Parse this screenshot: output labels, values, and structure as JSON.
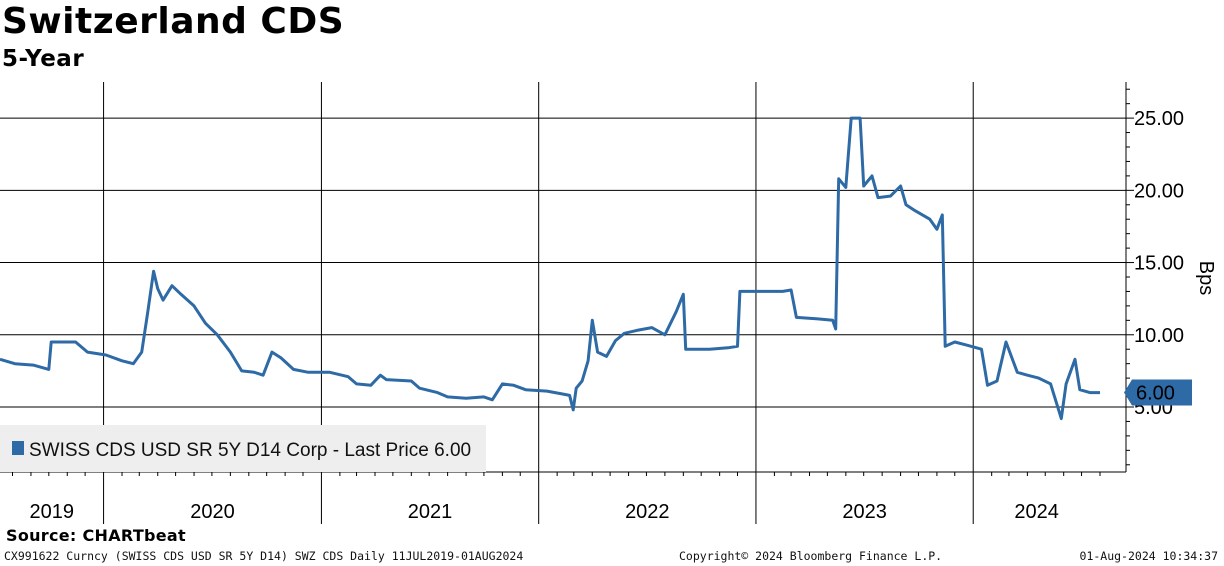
{
  "header": {
    "title": "Switzerland CDS",
    "subtitle": "5-Year"
  },
  "source_text": "Source: CHARTbeat",
  "footer": {
    "left": "CX991622 Curncy (SWISS CDS USD SR 5Y D14) SWZ CDS  Daily 11JUL2019-01AUG2024",
    "middle": "Copyright© 2024 Bloomberg Finance L.P.",
    "right": "01-Aug-2024 10:34:37"
  },
  "legend": {
    "text": "SWISS CDS USD SR 5Y D14 Corp - Last Price 6.00"
  },
  "colors": {
    "series": "#2e6aa5",
    "legend_bg": "#eeeeee",
    "grid": "#000000"
  },
  "chart_data": {
    "type": "line",
    "ylabel": "Bps",
    "ylim": [
      0.5,
      27.5
    ],
    "y_ticks": [
      "5.00",
      "10.00",
      "15.00",
      "20.00",
      "25.00"
    ],
    "x_range": [
      "2019-07-11",
      "2024-08-01"
    ],
    "year_labels": [
      "2019",
      "2020",
      "2021",
      "2022",
      "2023",
      "2024"
    ],
    "grid": true,
    "legend_position": "bottom-left",
    "last_value_label": "6.00",
    "series": [
      {
        "name": "SWISS CDS USD SR 5Y D14 Corp",
        "points": [
          [
            "2019-07-11",
            8.3
          ],
          [
            "2019-08-05",
            8.0
          ],
          [
            "2019-09-05",
            7.9
          ],
          [
            "2019-10-01",
            7.6
          ],
          [
            "2019-10-05",
            9.5
          ],
          [
            "2019-11-15",
            9.5
          ],
          [
            "2019-12-05",
            8.8
          ],
          [
            "2020-01-05",
            8.6
          ],
          [
            "2020-02-01",
            8.2
          ],
          [
            "2020-02-20",
            8.0
          ],
          [
            "2020-03-05",
            8.8
          ],
          [
            "2020-03-15",
            11.5
          ],
          [
            "2020-03-25",
            14.4
          ],
          [
            "2020-04-01",
            13.2
          ],
          [
            "2020-04-10",
            12.4
          ],
          [
            "2020-04-25",
            13.4
          ],
          [
            "2020-05-10",
            12.8
          ],
          [
            "2020-06-01",
            12.0
          ],
          [
            "2020-06-20",
            10.8
          ],
          [
            "2020-07-10",
            10.0
          ],
          [
            "2020-08-01",
            8.8
          ],
          [
            "2020-08-20",
            7.5
          ],
          [
            "2020-09-10",
            7.4
          ],
          [
            "2020-09-25",
            7.2
          ],
          [
            "2020-10-10",
            8.8
          ],
          [
            "2020-10-25",
            8.4
          ],
          [
            "2020-11-15",
            7.6
          ],
          [
            "2020-12-10",
            7.4
          ],
          [
            "2021-01-15",
            7.4
          ],
          [
            "2021-02-15",
            7.1
          ],
          [
            "2021-03-01",
            6.6
          ],
          [
            "2021-03-25",
            6.5
          ],
          [
            "2021-04-10",
            7.2
          ],
          [
            "2021-04-20",
            6.9
          ],
          [
            "2021-06-01",
            6.8
          ],
          [
            "2021-06-15",
            6.3
          ],
          [
            "2021-07-15",
            6.0
          ],
          [
            "2021-08-01",
            5.7
          ],
          [
            "2021-09-01",
            5.6
          ],
          [
            "2021-10-01",
            5.7
          ],
          [
            "2021-10-15",
            5.5
          ],
          [
            "2021-11-01",
            6.6
          ],
          [
            "2021-11-20",
            6.5
          ],
          [
            "2021-12-10",
            6.2
          ],
          [
            "2022-01-15",
            6.1
          ],
          [
            "2022-02-10",
            5.9
          ],
          [
            "2022-02-22",
            5.8
          ],
          [
            "2022-02-28",
            4.8
          ],
          [
            "2022-03-05",
            6.3
          ],
          [
            "2022-03-15",
            6.8
          ],
          [
            "2022-03-25",
            8.2
          ],
          [
            "2022-04-01",
            11.0
          ],
          [
            "2022-04-10",
            8.8
          ],
          [
            "2022-04-25",
            8.5
          ],
          [
            "2022-05-10",
            9.6
          ],
          [
            "2022-05-25",
            10.1
          ],
          [
            "2022-06-15",
            10.3
          ],
          [
            "2022-07-10",
            10.5
          ],
          [
            "2022-08-01",
            10.0
          ],
          [
            "2022-08-20",
            11.6
          ],
          [
            "2022-09-01",
            12.8
          ],
          [
            "2022-09-05",
            9.0
          ],
          [
            "2022-10-15",
            9.0
          ],
          [
            "2022-11-15",
            9.1
          ],
          [
            "2022-12-01",
            9.2
          ],
          [
            "2022-12-05",
            13.0
          ],
          [
            "2023-01-15",
            13.0
          ],
          [
            "2023-02-15",
            13.0
          ],
          [
            "2023-03-01",
            13.1
          ],
          [
            "2023-03-10",
            11.2
          ],
          [
            "2023-04-15",
            11.1
          ],
          [
            "2023-05-10",
            11.0
          ],
          [
            "2023-05-15",
            10.4
          ],
          [
            "2023-05-20",
            20.8
          ],
          [
            "2023-06-01",
            20.2
          ],
          [
            "2023-06-10",
            25.0
          ],
          [
            "2023-06-25",
            25.0
          ],
          [
            "2023-07-01",
            20.3
          ],
          [
            "2023-07-15",
            21.0
          ],
          [
            "2023-07-25",
            19.5
          ],
          [
            "2023-08-15",
            19.6
          ],
          [
            "2023-09-01",
            20.3
          ],
          [
            "2023-09-10",
            19.0
          ],
          [
            "2023-09-25",
            18.6
          ],
          [
            "2023-10-20",
            18.0
          ],
          [
            "2023-11-01",
            17.3
          ],
          [
            "2023-11-10",
            18.3
          ],
          [
            "2023-11-15",
            9.2
          ],
          [
            "2023-12-01",
            9.5
          ],
          [
            "2023-12-20",
            9.3
          ],
          [
            "2024-01-15",
            9.0
          ],
          [
            "2024-01-25",
            6.5
          ],
          [
            "2024-02-10",
            6.8
          ],
          [
            "2024-02-25",
            9.5
          ],
          [
            "2024-03-15",
            7.4
          ],
          [
            "2024-04-01",
            7.2
          ],
          [
            "2024-04-20",
            7.0
          ],
          [
            "2024-05-10",
            6.6
          ],
          [
            "2024-05-28",
            4.2
          ],
          [
            "2024-06-05",
            6.6
          ],
          [
            "2024-06-20",
            8.3
          ],
          [
            "2024-06-28",
            6.2
          ],
          [
            "2024-07-15",
            6.0
          ],
          [
            "2024-08-01",
            6.0
          ]
        ]
      }
    ]
  }
}
